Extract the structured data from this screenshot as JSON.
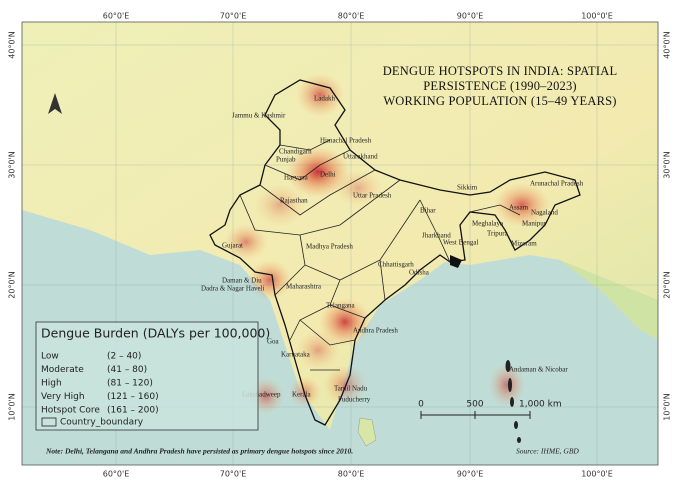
{
  "title": [
    "DENGUE HOTSPOTS IN INDIA: SPATIAL",
    "PERSISTENCE (1990–2023)",
    "WORKING POPULATION (15–49 YEARS)"
  ],
  "graticule": {
    "longitudes": [
      "60°0'E",
      "70°0'E",
      "80°0'E",
      "90°0'E",
      "100°0'E"
    ],
    "latitudes": [
      "40°0'N",
      "30°0'N",
      "20°0'N",
      "10°0'N"
    ]
  },
  "regions": [
    "Ladakh",
    "Jammu & Kashmir",
    "Himachal Pradesh",
    "Chandigarh",
    "Punjab",
    "Uttarakhand",
    "Haryana",
    "Delhi",
    "Uttar Pradesh",
    "Rajasthan",
    "Sikkim",
    "Arunachal Pradesh",
    "Assam",
    "Nagaland",
    "Meghalaya",
    "Manipur",
    "Tripura",
    "Mizoram",
    "Bihar",
    "Jharkhand",
    "West Bengal",
    "Gujarat",
    "Madhya Pradesh",
    "Chhattisgarh",
    "Odisha",
    "Daman & Diu",
    "Dadra & Nagar Haveli",
    "Maharashtra",
    "Telangana",
    "Andhra Pradesh",
    "Goa",
    "Karnataka",
    "Lakshadweep",
    "Kerala",
    "Tamil Nadu",
    "Puducherry",
    "Andaman & Nicobar"
  ],
  "legend": {
    "title": "Dengue Burden (DALYs per 100,000)",
    "classes": [
      {
        "name": "Low",
        "range": "(2 – 40)"
      },
      {
        "name": "Moderate",
        "range": "(41 – 80)"
      },
      {
        "name": "High",
        "range": "(81 – 120)"
      },
      {
        "name": "Very High",
        "range": "(121 – 160)"
      },
      {
        "name": "Hotspot Core",
        "range": "(161 – 200)"
      }
    ],
    "boundary": "Country_boundary"
  },
  "scale_bar": [
    "0",
    "500",
    "1,000 km"
  ],
  "note": "Note: Delhi, Telangana and Andhra Pradesh have persisted as primary dengue hotspots since 2010.",
  "source": "Source: IHME, GBD"
}
